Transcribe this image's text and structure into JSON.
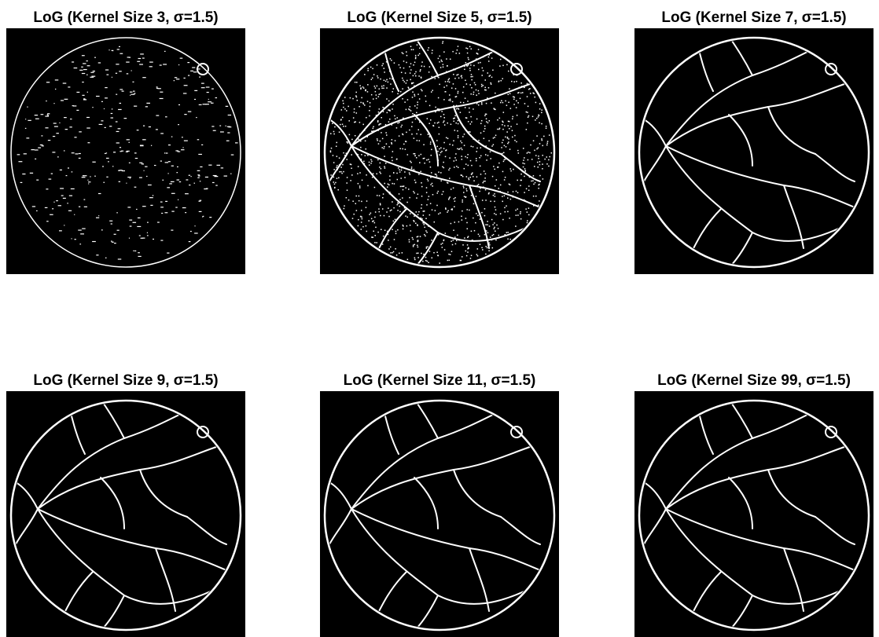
{
  "panels": [
    {
      "title": "LoG (Kernel Size 3, σ=1.5)"
    },
    {
      "title": "LoG (Kernel Size 5, σ=1.5)"
    },
    {
      "title": "LoG (Kernel Size 7, σ=1.5)"
    },
    {
      "title": "LoG (Kernel Size 9, σ=1.5)"
    },
    {
      "title": "LoG (Kernel Size 11, σ=1.5)"
    },
    {
      "title": "LoG (Kernel Size 99, σ=1.5)"
    }
  ]
}
